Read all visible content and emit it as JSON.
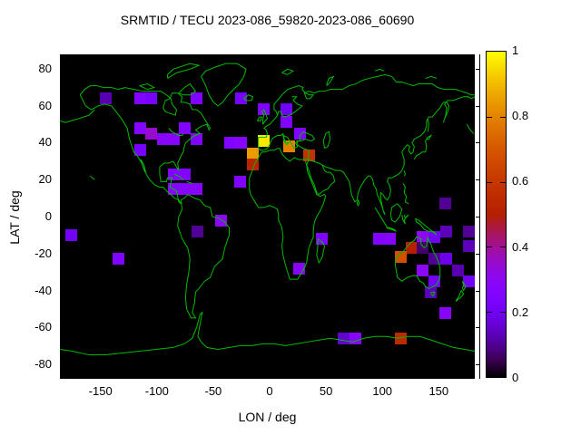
{
  "title": "SRMTID / TECU 2023-086_59820-2023-086_60690",
  "colors": {
    "background": "#ffffff",
    "map_background": "#000000",
    "coastline": "#00bb00",
    "frame": "#000000",
    "text": "#000000"
  },
  "axes": {
    "x": {
      "label": "LON / deg",
      "min": -186,
      "max": 184,
      "ticks": [
        -150,
        -100,
        -50,
        0,
        50,
        100,
        150
      ]
    },
    "y": {
      "label": "LAT / deg",
      "min": -88,
      "max": 88,
      "ticks": [
        80,
        60,
        40,
        20,
        0,
        -20,
        -40,
        -60,
        -80
      ]
    }
  },
  "colorbar": {
    "min": 0,
    "max": 1,
    "tick_values": [
      0.2,
      0.4,
      0.6,
      0.8
    ],
    "labels": [
      {
        "value": 1,
        "text": "1"
      },
      {
        "value": 0.8,
        "text": "0.8"
      },
      {
        "value": 0.6,
        "text": "0.6"
      },
      {
        "value": 0.4,
        "text": "0.4"
      },
      {
        "value": 0.2,
        "text": "0.2"
      },
      {
        "value": 0,
        "text": "0"
      }
    ],
    "palette": "pm3d black-violet-purple-red-orange-yellow"
  },
  "chart_data": {
    "type": "heatmap",
    "title": "SRMTID / TECU 2023-086_59820-2023-086_60690",
    "xlabel": "LON / deg",
    "ylabel": "LAT / deg",
    "xlim": [
      -186,
      184
    ],
    "ylim": [
      -88,
      88
    ],
    "zlim": [
      0,
      1
    ],
    "grid": false,
    "legend_position": "right-colorbar",
    "cell_size_deg": {
      "lon": 10,
      "lat": 6
    },
    "points": [
      {
        "lon": -145,
        "lat": 64,
        "v": 0.12
      },
      {
        "lon": -115,
        "lat": 64,
        "v": 0.25
      },
      {
        "lon": -105,
        "lat": 64,
        "v": 0.22
      },
      {
        "lon": -65,
        "lat": 64,
        "v": 0.25
      },
      {
        "lon": -25,
        "lat": 64,
        "v": 0.22
      },
      {
        "lon": -5,
        "lat": 58,
        "v": 0.25
      },
      {
        "lon": 15,
        "lat": 58,
        "v": 0.2
      },
      {
        "lon": 15,
        "lat": 51,
        "v": 0.25
      },
      {
        "lon": -115,
        "lat": 48,
        "v": 0.27
      },
      {
        "lon": -105,
        "lat": 45,
        "v": 0.35
      },
      {
        "lon": -75,
        "lat": 48,
        "v": 0.25
      },
      {
        "lon": -95,
        "lat": 42,
        "v": 0.28
      },
      {
        "lon": -85,
        "lat": 42,
        "v": 0.28
      },
      {
        "lon": -65,
        "lat": 42,
        "v": 0.25
      },
      {
        "lon": -115,
        "lat": 36,
        "v": 0.22
      },
      {
        "lon": -35,
        "lat": 40,
        "v": 0.25
      },
      {
        "lon": -25,
        "lat": 40,
        "v": 0.27
      },
      {
        "lon": -5,
        "lat": 41,
        "v": 0.97
      },
      {
        "lon": -15,
        "lat": 34,
        "v": 0.85
      },
      {
        "lon": -15,
        "lat": 28,
        "v": 0.52
      },
      {
        "lon": 17,
        "lat": 38,
        "v": 0.8
      },
      {
        "lon": 27,
        "lat": 45,
        "v": 0.25
      },
      {
        "lon": 35,
        "lat": 33,
        "v": 0.58
      },
      {
        "lon": -85,
        "lat": 23,
        "v": 0.25
      },
      {
        "lon": -75,
        "lat": 23,
        "v": 0.25
      },
      {
        "lon": -26,
        "lat": 19,
        "v": 0.25
      },
      {
        "lon": -85,
        "lat": 15,
        "v": 0.27
      },
      {
        "lon": -75,
        "lat": 15,
        "v": 0.27
      },
      {
        "lon": -65,
        "lat": 15,
        "v": 0.27
      },
      {
        "lon": 156,
        "lat": 7,
        "v": 0.1
      },
      {
        "lon": -176,
        "lat": -10,
        "v": 0.2
      },
      {
        "lon": -64,
        "lat": -8,
        "v": 0.1
      },
      {
        "lon": -43,
        "lat": -2,
        "v": 0.3
      },
      {
        "lon": 46,
        "lat": -12,
        "v": 0.25
      },
      {
        "lon": 97,
        "lat": -12,
        "v": 0.25
      },
      {
        "lon": 107,
        "lat": -12,
        "v": 0.28
      },
      {
        "lon": 136,
        "lat": -11,
        "v": 0.3
      },
      {
        "lon": 146,
        "lat": -11,
        "v": 0.2
      },
      {
        "lon": 157,
        "lat": -8,
        "v": 0.13
      },
      {
        "lon": 177,
        "lat": -8,
        "v": 0.1
      },
      {
        "lon": 177,
        "lat": -16,
        "v": 0.13
      },
      {
        "lon": 126,
        "lat": -17,
        "v": 0.5
      },
      {
        "lon": 136,
        "lat": -17,
        "v": 0.07
      },
      {
        "lon": 116,
        "lat": -22,
        "v": 0.68
      },
      {
        "lon": -134,
        "lat": -23,
        "v": 0.25
      },
      {
        "lon": 146,
        "lat": -23,
        "v": 0.1
      },
      {
        "lon": 157,
        "lat": -23,
        "v": 0.18
      },
      {
        "lon": 26,
        "lat": -28,
        "v": 0.28
      },
      {
        "lon": 136,
        "lat": -29,
        "v": 0.3
      },
      {
        "lon": 167,
        "lat": -29,
        "v": 0.12
      },
      {
        "lon": 146,
        "lat": -35,
        "v": 0.2
      },
      {
        "lon": 177,
        "lat": -35,
        "v": 0.2
      },
      {
        "lon": 143,
        "lat": -41,
        "v": 0.13
      },
      {
        "lon": 156,
        "lat": -52,
        "v": 0.28
      },
      {
        "lon": 66,
        "lat": -66,
        "v": 0.15
      },
      {
        "lon": 76,
        "lat": -66,
        "v": 0.28
      },
      {
        "lon": 116,
        "lat": -66,
        "v": 0.55
      }
    ]
  }
}
